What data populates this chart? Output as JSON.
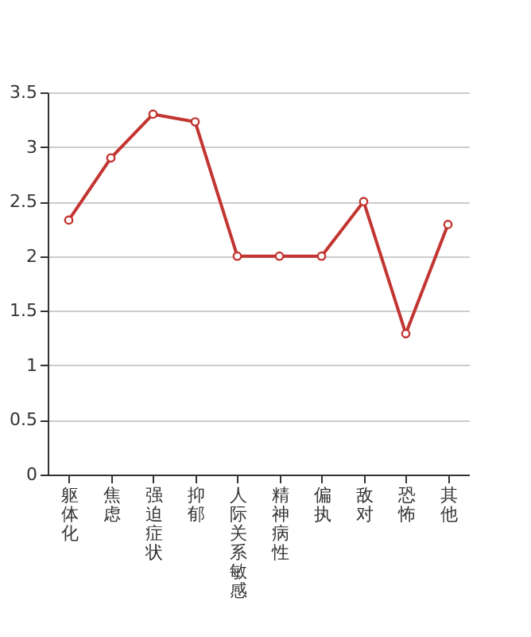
{
  "chart_data": {
    "type": "line",
    "categories": [
      "躯体化",
      "焦虑",
      "强迫症状",
      "抑郁",
      "人际关系敏感",
      "精神病性",
      "偏执",
      "敌对",
      "恐怖",
      "其他"
    ],
    "series": [
      {
        "color": "#c23531",
        "values": [
          2.33,
          2.9,
          3.3,
          3.23,
          2.0,
          2.0,
          2.0,
          2.5,
          1.29,
          2.29
        ]
      }
    ],
    "ylim": [
      0,
      3.5
    ],
    "yticks": [
      0,
      0.5,
      1,
      1.5,
      2,
      2.5,
      3,
      3.5
    ],
    "grid": "y",
    "marker": "circle",
    "line_style": "solid"
  }
}
